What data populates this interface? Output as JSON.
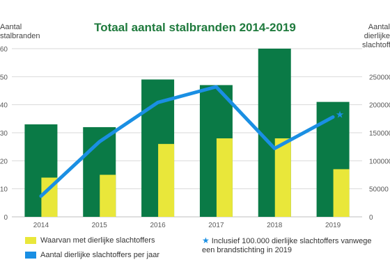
{
  "colors": {
    "total_bar": "#0a7a46",
    "victims_bar": "#e9e73a",
    "line": "#1a8fe3",
    "title": "#1f7a3d",
    "grid": "#d9d9d9"
  },
  "chart_data": {
    "type": "bar",
    "title": "Totaal aantal stalbranden 2014-2019",
    "categories": [
      "2014",
      "2015",
      "2016",
      "2017",
      "2018",
      "2019"
    ],
    "y_left": {
      "label": "Aantal stalbranden",
      "ylim": [
        0,
        60
      ],
      "ticks": [
        "0",
        "10",
        "20",
        "30",
        "40",
        "50",
        "60"
      ],
      "tick_values": [
        0,
        10,
        20,
        30,
        40,
        50,
        60
      ]
    },
    "y_right": {
      "label": "Aantal dierlijke slachtoffers",
      "ylim": [
        0,
        300000
      ],
      "ticks": [
        "0",
        "50000",
        "100000",
        "150000",
        "200000",
        "250000"
      ],
      "tick_values": [
        0,
        50000,
        100000,
        150000,
        200000,
        250000
      ]
    },
    "series": [
      {
        "name": "",
        "kind": "bar",
        "axis": "left",
        "values": [
          33,
          32,
          49,
          47,
          60,
          41
        ]
      },
      {
        "name": "Waarvan met dierlijke slachtoffers",
        "kind": "bar",
        "axis": "left",
        "values": [
          14,
          15,
          26,
          28,
          28,
          17
        ]
      },
      {
        "name": "Aantal dierlijke slachtoffers per jaar",
        "kind": "line",
        "axis": "right",
        "values": [
          37000,
          134000,
          204000,
          232000,
          122000,
          178000
        ]
      }
    ],
    "annotation": {
      "category": "2019",
      "value": 183000,
      "marker": "★",
      "text": "Inclusief 100.000 dierlijke slachtoffers vanwege een brandstichting in 2019"
    },
    "grid": true,
    "legend_position": "bottom"
  }
}
